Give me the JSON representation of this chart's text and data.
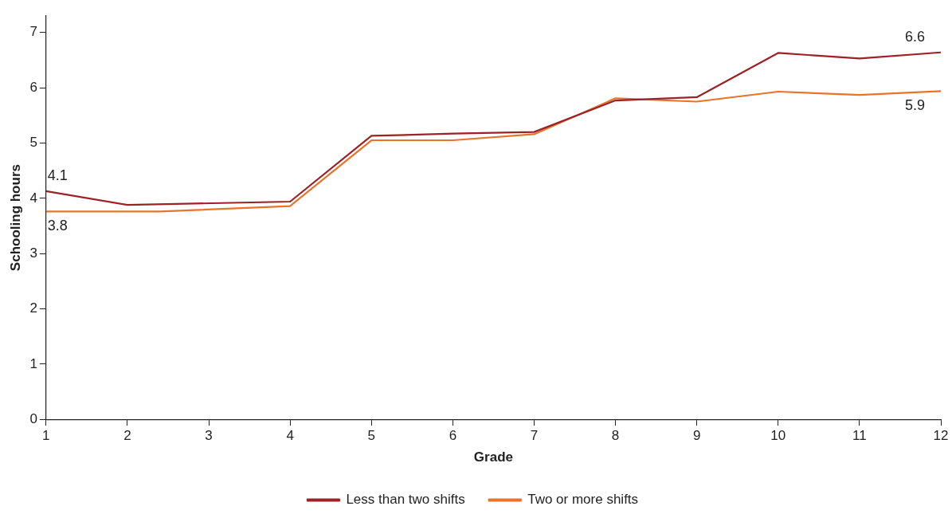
{
  "chart_data": {
    "type": "line",
    "xlabel": "Grade",
    "ylabel": "Schooling hours",
    "x": [
      1,
      2,
      4,
      5,
      6,
      7,
      8,
      9,
      10,
      11,
      12
    ],
    "series": [
      {
        "name": "Less than two shifts",
        "color": "#9b2226",
        "values": [
          4.13,
          3.88,
          3.94,
          5.13,
          5.17,
          5.2,
          5.77,
          5.83,
          6.63,
          6.53,
          6.64
        ],
        "value_labels": [
          "4.1",
          null,
          null,
          null,
          null,
          null,
          null,
          null,
          null,
          null,
          "6.6"
        ]
      },
      {
        "name": "Two or more shifts",
        "color": "#e8742a",
        "x": [
          1,
          2,
          2.4,
          4,
          5,
          6,
          7,
          8,
          9,
          10,
          11,
          12
        ],
        "values": [
          3.76,
          3.76,
          3.76,
          3.86,
          5.05,
          5.05,
          5.16,
          5.81,
          5.75,
          5.93,
          5.87,
          5.94
        ],
        "value_labels": [
          "3.8",
          null,
          null,
          null,
          null,
          null,
          null,
          null,
          null,
          null,
          null,
          "5.9"
        ]
      }
    ],
    "xlim": [
      1,
      12
    ],
    "xticks": [
      1,
      2,
      3,
      4,
      5,
      6,
      7,
      8,
      9,
      10,
      11,
      12
    ],
    "ylim": [
      0,
      7.3
    ],
    "yticks": [
      0,
      1,
      2,
      3,
      4,
      5,
      6,
      7
    ],
    "grid": false,
    "legend": "bottom",
    "marker": "none",
    "line_style": "solid"
  }
}
